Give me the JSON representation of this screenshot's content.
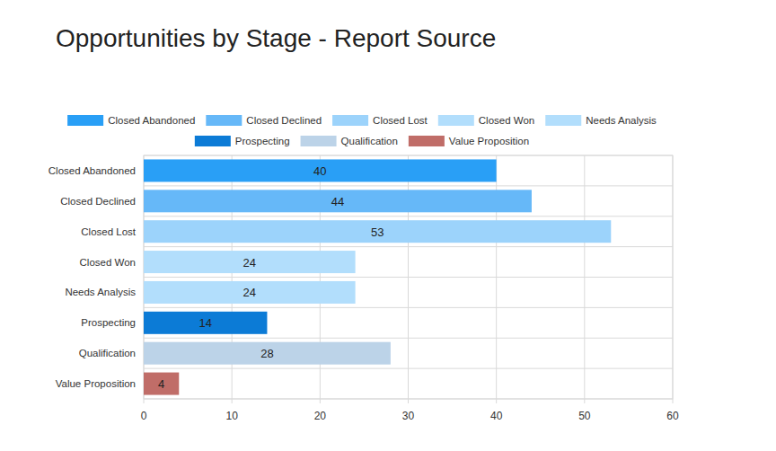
{
  "chart_data": {
    "type": "bar",
    "title": "Opportunities by Stage - Report Source",
    "orientation": "horizontal",
    "categories": [
      "Closed Abandoned",
      "Closed Declined",
      "Closed Lost",
      "Closed Won",
      "Needs Analysis",
      "Prospecting",
      "Qualification",
      "Value Proposition"
    ],
    "values": [
      40,
      44,
      53,
      24,
      24,
      14,
      28,
      4
    ],
    "colors": [
      "#299ff6",
      "#66b8f8",
      "#9cd3fb",
      "#b2defc",
      "#b2defc",
      "#0c7bd6",
      "#bcd3e8",
      "#c06d68"
    ],
    "xlim": [
      0,
      60
    ],
    "xticks": [
      0,
      10,
      20,
      30,
      40,
      50,
      60
    ],
    "grid": true,
    "data_labels": true,
    "legend": "top"
  }
}
